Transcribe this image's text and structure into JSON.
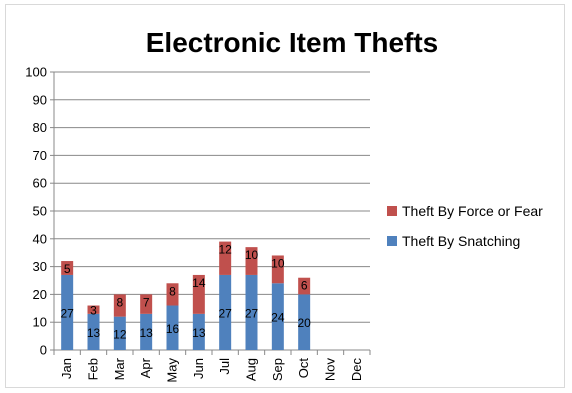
{
  "chart_data": {
    "type": "bar",
    "stacked": true,
    "title": "Electronic Item Thefts",
    "categories": [
      "Jan",
      "Feb",
      "Mar",
      "Apr",
      "May",
      "Jun",
      "Jul",
      "Aug",
      "Sep",
      "Oct",
      "Nov",
      "Dec"
    ],
    "series": [
      {
        "name": "Theft By Snatching",
        "color": "#4f81bd",
        "values": [
          27,
          13,
          12,
          13,
          16,
          13,
          27,
          27,
          24,
          20,
          null,
          null
        ]
      },
      {
        "name": "Theft By Force or Fear",
        "color": "#c0504d",
        "values": [
          5,
          3,
          8,
          7,
          8,
          14,
          12,
          10,
          10,
          6,
          null,
          null
        ]
      }
    ],
    "ylim": [
      0,
      100
    ],
    "yticks": [
      0,
      10,
      20,
      30,
      40,
      50,
      60,
      70,
      80,
      90,
      100
    ],
    "grid": true,
    "legend_position": "right"
  }
}
